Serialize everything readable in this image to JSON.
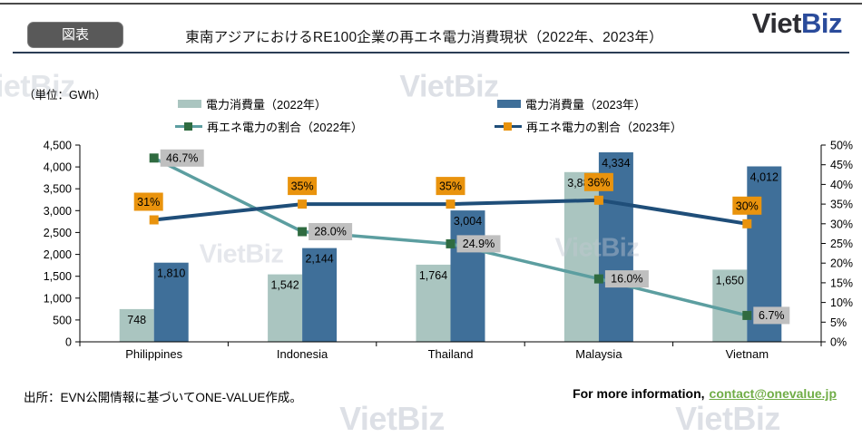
{
  "header": {
    "badge": "図表",
    "title": "東南アジアにおけるRE100企業の再エネ電力消費現状（2022年、2023年）",
    "logo": {
      "viet": "Viet",
      "biz": "Biz"
    }
  },
  "unit_label": "（単位：GWh）",
  "legend": {
    "bar_2022": "電力消費量（2022年）",
    "bar_2023": "電力消費量（2023年）",
    "line_2022": "再エネ電力の割合（2022年）",
    "line_2023": "再エネ電力の割合（2023年）"
  },
  "chart_data": {
    "type": "combo bar+line",
    "categories": [
      "Philippines",
      "Indonesia",
      "Thailand",
      "Malaysia",
      "Vietnam"
    ],
    "bar_series": [
      {
        "name": "電力消費量（2022年）",
        "color": "#AAC5C0",
        "values": [
          748,
          1542,
          1764,
          3881,
          1650
        ],
        "labels": [
          "748",
          "1,542",
          "1,764",
          "3,881",
          "1,650"
        ]
      },
      {
        "name": "電力消費量（2023年）",
        "color": "#3F6F99",
        "values": [
          1810,
          2144,
          3004,
          4334,
          4012
        ],
        "labels": [
          "1,810",
          "2,144",
          "3,004",
          "4,334",
          "4,012"
        ]
      }
    ],
    "line_series": [
      {
        "name": "再エネ電力の割合（2022年）",
        "line_color": "#5C9EA0",
        "marker_color": "#2F6B40",
        "label_bg": "#BFBFBF",
        "label_pos": "right",
        "values": [
          46.7,
          28.0,
          24.9,
          16.0,
          6.7
        ],
        "labels": [
          "46.7%",
          "28.0%",
          "24.9%",
          "16.0%",
          "6.7%"
        ]
      },
      {
        "name": "再エネ電力の割合（2023年）",
        "line_color": "#1F4E79",
        "marker_color": "#E9930D",
        "label_bg": "#E9930D",
        "label_pos": "above",
        "label_dx": [
          -6,
          0,
          0,
          0,
          0
        ],
        "values": [
          31,
          35,
          35,
          36,
          30
        ],
        "labels": [
          "31%",
          "35%",
          "35%",
          "36%",
          "30%"
        ]
      }
    ],
    "left_axis": {
      "min": 0,
      "max": 4500,
      "step": 500,
      "tick_labels": [
        "0",
        "500",
        "1,000",
        "1,500",
        "2,000",
        "2,500",
        "3,000",
        "3,500",
        "4,000",
        "4,500"
      ]
    },
    "right_axis": {
      "min": 0,
      "max": 50,
      "step": 5,
      "tick_labels": [
        "0%",
        "5%",
        "10%",
        "15%",
        "20%",
        "25%",
        "30%",
        "35%",
        "40%",
        "45%",
        "50%"
      ]
    },
    "grid": false,
    "legend_position": "top"
  },
  "footer": {
    "source": "出所：EVN公開情報に基づいてONE-VALUE作成。",
    "info_lead": "For more information,",
    "email": "contact@onevalue.jp"
  },
  "watermark": "VietBiz",
  "colors": {
    "bar_2022": "#AAC5C0",
    "bar_2023": "#3F6F99",
    "line_2022": "#5C9EA0",
    "marker_2022": "#2F6B40",
    "line_2023": "#1F4E79",
    "marker_2023": "#E9930D",
    "label_gray": "#BFBFBF",
    "label_orange": "#E9930D",
    "badge_gray": "#595959",
    "link_green": "#70AD47",
    "logo_navy": "#2A4B9B"
  }
}
